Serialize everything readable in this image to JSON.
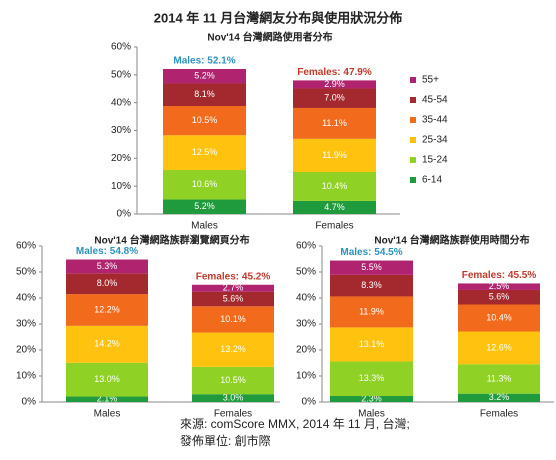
{
  "title": "2014 年 11 月台灣網友分布與使用狀況分佈",
  "source": [
    "來源: comScore MMX, 2014 年 11 月, 台灣;",
    "發佈單位: 創市際"
  ],
  "chart_data": [
    {
      "type": "stacked_bar",
      "title": "Nov'14 台灣網路使用者分布",
      "legend": "right",
      "categories": [
        "Males",
        "Females"
      ],
      "ylim": [
        0,
        60
      ],
      "yticks": [
        {
          "value": 0,
          "label": "0%"
        },
        {
          "value": 10,
          "label": "10%"
        },
        {
          "value": 20,
          "label": "20%"
        },
        {
          "value": 30,
          "label": "30%"
        },
        {
          "value": 40,
          "label": "40%"
        },
        {
          "value": 50,
          "label": "50%"
        },
        {
          "value": 60,
          "label": "60%"
        }
      ],
      "annotations": [
        {
          "text": "Males: 52.1%",
          "color": "#2a93bd"
        },
        {
          "text": "Females: 47.9%",
          "color": "#c0392b"
        }
      ],
      "series": [
        {
          "name": "6-14",
          "color": "#1f9a3c",
          "values": [
            5.2,
            4.7
          ],
          "value_labels": [
            "5.2%",
            "4.7%"
          ]
        },
        {
          "name": "15-24",
          "color": "#8fd124",
          "values": [
            10.6,
            10.4
          ],
          "value_labels": [
            "10.6%",
            "10.4%"
          ]
        },
        {
          "name": "25-34",
          "color": "#ffc20e",
          "values": [
            12.5,
            11.9
          ],
          "value_labels": [
            "12.5%",
            "11.9%"
          ]
        },
        {
          "name": "35-44",
          "color": "#f26a1b",
          "values": [
            10.5,
            11.1
          ],
          "value_labels": [
            "10.5%",
            "11.1%"
          ]
        },
        {
          "name": "45-54",
          "color": "#a3292e",
          "values": [
            8.1,
            7.0
          ],
          "value_labels": [
            "8.1%",
            "7.0%"
          ]
        },
        {
          "name": "55+",
          "color": "#b0236f",
          "values": [
            5.2,
            2.9
          ],
          "value_labels": [
            "5.2%",
            "2.9%"
          ]
        }
      ]
    },
    {
      "type": "stacked_bar",
      "title": "Nov'14 台灣網路族群瀏覽網頁分布",
      "categories": [
        "Males",
        "Females"
      ],
      "ylim": [
        0,
        60
      ],
      "yticks": [
        {
          "value": 0,
          "label": "0%"
        },
        {
          "value": 10,
          "label": "10%"
        },
        {
          "value": 20,
          "label": "20%"
        },
        {
          "value": 30,
          "label": "30%"
        },
        {
          "value": 40,
          "label": "40%"
        },
        {
          "value": 50,
          "label": "50%"
        },
        {
          "value": 60,
          "label": "60%"
        }
      ],
      "annotations": [
        {
          "text": "Males: 54.8%",
          "color": "#2a93bd"
        },
        {
          "text": "Females: 45.2%",
          "color": "#c0392b"
        }
      ],
      "series": [
        {
          "color": "#1f9a3c",
          "values": [
            2.1,
            3.0
          ],
          "value_labels": [
            "2.1%",
            "3.0%"
          ]
        },
        {
          "color": "#8fd124",
          "values": [
            13.0,
            10.5
          ],
          "value_labels": [
            "13.0%",
            "10.5%"
          ]
        },
        {
          "color": "#ffc20e",
          "values": [
            14.2,
            13.2
          ],
          "value_labels": [
            "14.2%",
            "13.2%"
          ]
        },
        {
          "color": "#f26a1b",
          "values": [
            12.2,
            10.1
          ],
          "value_labels": [
            "12.2%",
            "10.1%"
          ]
        },
        {
          "color": "#a3292e",
          "values": [
            8.0,
            5.6
          ],
          "value_labels": [
            "8.0%",
            "5.6%"
          ]
        },
        {
          "color": "#b0236f",
          "values": [
            5.3,
            2.7
          ],
          "value_labels": [
            "5.3%",
            "2.7%"
          ]
        }
      ]
    },
    {
      "type": "stacked_bar",
      "title": "Nov'14 台灣網路族群使用時間分布",
      "categories": [
        "Males",
        "Females"
      ],
      "ylim": [
        0,
        60
      ],
      "yticks": [
        {
          "value": 0,
          "label": "0%"
        },
        {
          "value": 10,
          "label": "10%"
        },
        {
          "value": 20,
          "label": "20%"
        },
        {
          "value": 30,
          "label": "30%"
        },
        {
          "value": 40,
          "label": "40%"
        },
        {
          "value": 50,
          "label": "50%"
        },
        {
          "value": 60,
          "label": "60%"
        }
      ],
      "annotations": [
        {
          "text": "Males: 54.5%",
          "color": "#2a93bd"
        },
        {
          "text": "Females: 45.5%",
          "color": "#c0392b"
        }
      ],
      "series": [
        {
          "color": "#1f9a3c",
          "values": [
            2.3,
            3.2
          ],
          "value_labels": [
            "2.3%",
            "3.2%"
          ]
        },
        {
          "color": "#8fd124",
          "values": [
            13.3,
            11.3
          ],
          "value_labels": [
            "13.3%",
            "11.3%"
          ]
        },
        {
          "color": "#ffc20e",
          "values": [
            13.1,
            12.6
          ],
          "value_labels": [
            "13.1%",
            "12.6%"
          ]
        },
        {
          "color": "#f26a1b",
          "values": [
            11.9,
            10.4
          ],
          "value_labels": [
            "11.9%",
            "10.4%"
          ]
        },
        {
          "color": "#a3292e",
          "values": [
            8.3,
            5.6
          ],
          "value_labels": [
            "8.3%",
            "5.6%"
          ]
        },
        {
          "color": "#b0236f",
          "values": [
            5.5,
            2.5
          ],
          "value_labels": [
            "5.5%",
            "2.5%"
          ]
        }
      ]
    }
  ]
}
